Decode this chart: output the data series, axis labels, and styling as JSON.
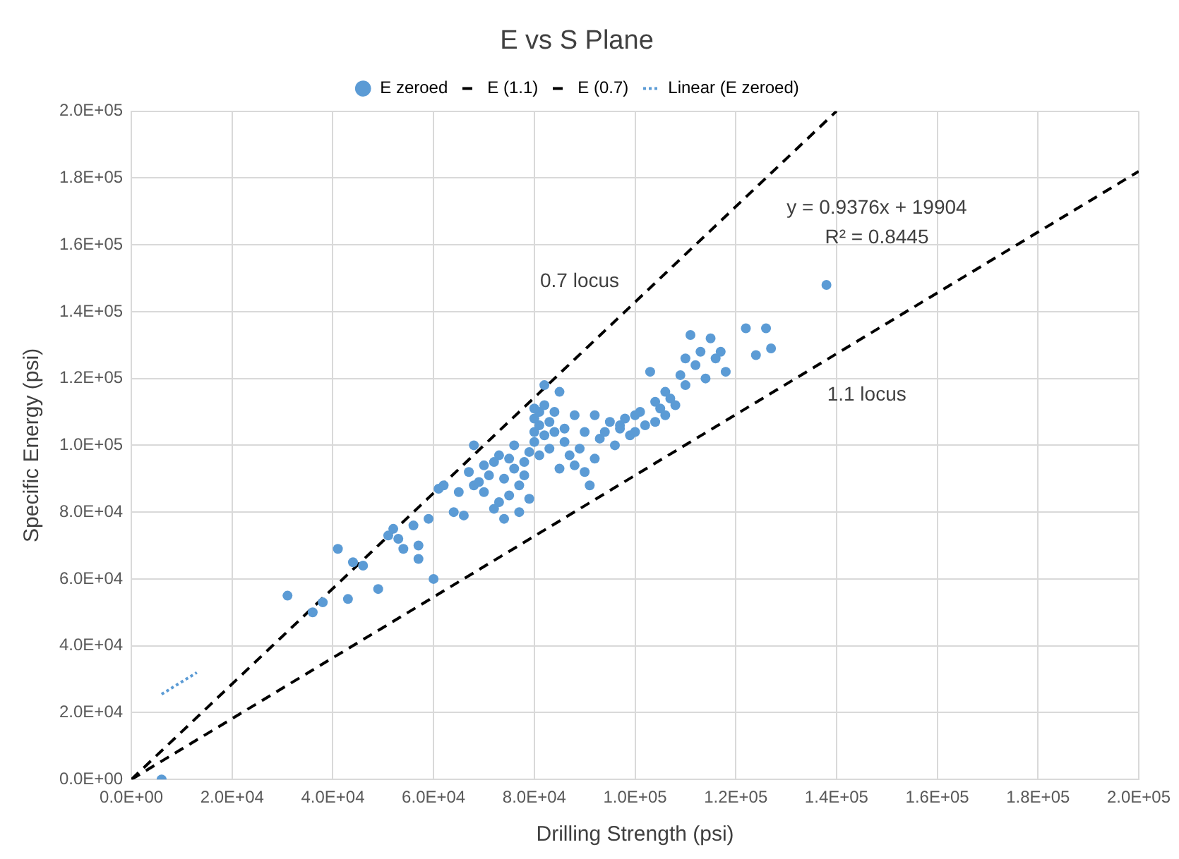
{
  "chart_data": {
    "type": "scatter",
    "title": "E vs S Plane",
    "xlabel": "Drilling Strength (psi)",
    "ylabel": "Specific Energy (psi)",
    "xlim": [
      0,
      200000
    ],
    "ylim": [
      0,
      200000
    ],
    "xticks": [
      {
        "value": 0,
        "label": "0.0E+00"
      },
      {
        "value": 20000,
        "label": "2.0E+04"
      },
      {
        "value": 40000,
        "label": "4.0E+04"
      },
      {
        "value": 60000,
        "label": "6.0E+04"
      },
      {
        "value": 80000,
        "label": "8.0E+04"
      },
      {
        "value": 100000,
        "label": "1.0E+05"
      },
      {
        "value": 120000,
        "label": "1.2E+05"
      },
      {
        "value": 140000,
        "label": "1.4E+05"
      },
      {
        "value": 160000,
        "label": "1.6E+05"
      },
      {
        "value": 180000,
        "label": "1.8E+05"
      },
      {
        "value": 200000,
        "label": "2.0E+05"
      }
    ],
    "yticks": [
      {
        "value": 0,
        "label": "0.0E+00"
      },
      {
        "value": 20000,
        "label": "2.0E+04"
      },
      {
        "value": 40000,
        "label": "4.0E+04"
      },
      {
        "value": 60000,
        "label": "6.0E+04"
      },
      {
        "value": 80000,
        "label": "8.0E+04"
      },
      {
        "value": 100000,
        "label": "1.0E+05"
      },
      {
        "value": 120000,
        "label": "1.2E+05"
      },
      {
        "value": 140000,
        "label": "1.4E+05"
      },
      {
        "value": 160000,
        "label": "1.6E+05"
      },
      {
        "value": 180000,
        "label": "1.8E+05"
      },
      {
        "value": 200000,
        "label": "2.0E+05"
      }
    ],
    "grid": true,
    "legend": "top",
    "series": [
      {
        "name": "E zeroed",
        "marker": "circle",
        "color": "#5b9bd5",
        "x": [
          6000,
          31000,
          36000,
          38000,
          41000,
          43000,
          44000,
          46000,
          49000,
          51000,
          52000,
          53000,
          54000,
          56000,
          57000,
          57000,
          59000,
          60000,
          61000,
          62000,
          64000,
          65000,
          66000,
          67000,
          68000,
          68000,
          69000,
          70000,
          70000,
          71000,
          72000,
          72000,
          73000,
          73000,
          74000,
          74000,
          75000,
          75000,
          76000,
          76000,
          77000,
          77000,
          78000,
          78000,
          79000,
          79000,
          80000,
          80000,
          80000,
          81000,
          81000,
          81000,
          82000,
          82000,
          83000,
          83000,
          84000,
          84000,
          85000,
          85000,
          86000,
          87000,
          88000,
          89000,
          90000,
          90000,
          91000,
          92000,
          93000,
          94000,
          95000,
          96000,
          97000,
          98000,
          99000,
          100000,
          101000,
          102000,
          103000,
          104000,
          105000,
          106000,
          107000,
          108000,
          109000,
          110000,
          110000,
          111000,
          112000,
          113000,
          114000,
          115000,
          116000,
          117000,
          118000,
          122000,
          124000,
          126000,
          127000,
          138000,
          97000,
          88000,
          86000,
          80000,
          82000,
          104000,
          106000,
          100000,
          92000
        ],
        "values": [
          0,
          55000,
          50000,
          53000,
          69000,
          54000,
          65000,
          64000,
          57000,
          73000,
          75000,
          72000,
          69000,
          76000,
          70000,
          66000,
          78000,
          60000,
          87000,
          88000,
          80000,
          86000,
          79000,
          92000,
          100000,
          88000,
          89000,
          94000,
          86000,
          91000,
          95000,
          81000,
          97000,
          83000,
          90000,
          78000,
          96000,
          85000,
          100000,
          93000,
          80000,
          88000,
          95000,
          91000,
          98000,
          84000,
          104000,
          101000,
          108000,
          110000,
          97000,
          106000,
          103000,
          112000,
          99000,
          107000,
          104000,
          110000,
          116000,
          93000,
          101000,
          97000,
          94000,
          99000,
          104000,
          92000,
          88000,
          109000,
          102000,
          104000,
          107000,
          100000,
          106000,
          108000,
          103000,
          109000,
          110000,
          106000,
          122000,
          107000,
          111000,
          116000,
          114000,
          112000,
          121000,
          126000,
          118000,
          133000,
          124000,
          128000,
          120000,
          132000,
          126000,
          128000,
          122000,
          135000,
          127000,
          135000,
          129000,
          148000,
          105000,
          109000,
          105000,
          111000,
          118000,
          113000,
          109000,
          104000,
          96000
        ]
      },
      {
        "name": "E (1.1)",
        "type": "line",
        "marker": "none",
        "line_style": "dashed",
        "color": "#000000",
        "x": [
          0,
          200000
        ],
        "values": [
          0,
          182000
        ]
      },
      {
        "name": "E (0.7)",
        "type": "line",
        "marker": "none",
        "line_style": "dashed",
        "color": "#000000",
        "x": [
          0,
          140000
        ],
        "values": [
          0,
          200000
        ]
      },
      {
        "name": "Linear (E zeroed)",
        "type": "line",
        "marker": "none",
        "line_style": "dotted",
        "color": "#5b9bd5",
        "x": [
          6000,
          13000
        ],
        "values": [
          25500,
          32000
        ]
      }
    ],
    "annotations": [
      "y = 0.9376x + 19904",
      "R² = 0.8445",
      "0.7 locus",
      "1.1 locus"
    ]
  }
}
